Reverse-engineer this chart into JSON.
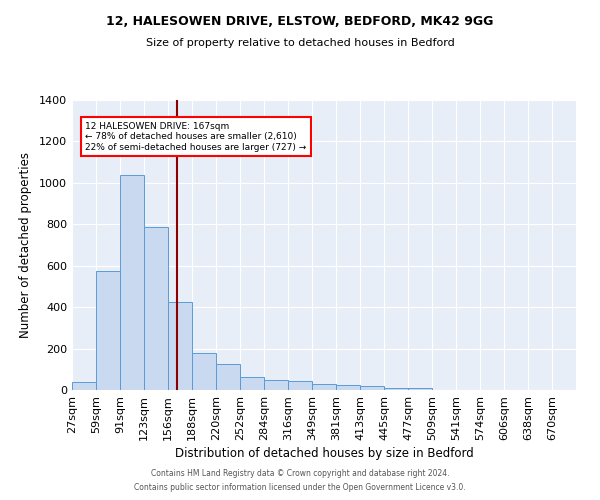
{
  "title1": "12, HALESOWEN DRIVE, ELSTOW, BEDFORD, MK42 9GG",
  "title2": "Size of property relative to detached houses in Bedford",
  "xlabel": "Distribution of detached houses by size in Bedford",
  "ylabel": "Number of detached properties",
  "footnote1": "Contains HM Land Registry data © Crown copyright and database right 2024.",
  "footnote2": "Contains public sector information licensed under the Open Government Licence v3.0.",
  "annotation_line1": "12 HALESOWEN DRIVE: 167sqm",
  "annotation_line2": "← 78% of detached houses are smaller (2,610)",
  "annotation_line3": "22% of semi-detached houses are larger (727) →",
  "property_size": 167,
  "bar_color": "#c9d9f0",
  "bar_edge_color": "#5b9bd5",
  "vline_color": "#8b0000",
  "background_color": "#e8eef8",
  "categories": [
    "27sqm",
    "59sqm",
    "91sqm",
    "123sqm",
    "156sqm",
    "188sqm",
    "220sqm",
    "252sqm",
    "284sqm",
    "316sqm",
    "349sqm",
    "381sqm",
    "413sqm",
    "445sqm",
    "477sqm",
    "509sqm",
    "541sqm",
    "574sqm",
    "606sqm",
    "638sqm",
    "670sqm"
  ],
  "bin_edges": [
    27,
    59,
    91,
    123,
    156,
    188,
    220,
    252,
    284,
    316,
    349,
    381,
    413,
    445,
    477,
    509,
    541,
    574,
    606,
    638,
    670
  ],
  "values": [
    40,
    575,
    1040,
    785,
    425,
    180,
    125,
    65,
    50,
    45,
    27,
    22,
    17,
    10,
    8,
    0,
    0,
    0,
    0,
    0,
    0
  ],
  "ylim": [
    0,
    1400
  ],
  "yticks": [
    0,
    200,
    400,
    600,
    800,
    1000,
    1200,
    1400
  ]
}
